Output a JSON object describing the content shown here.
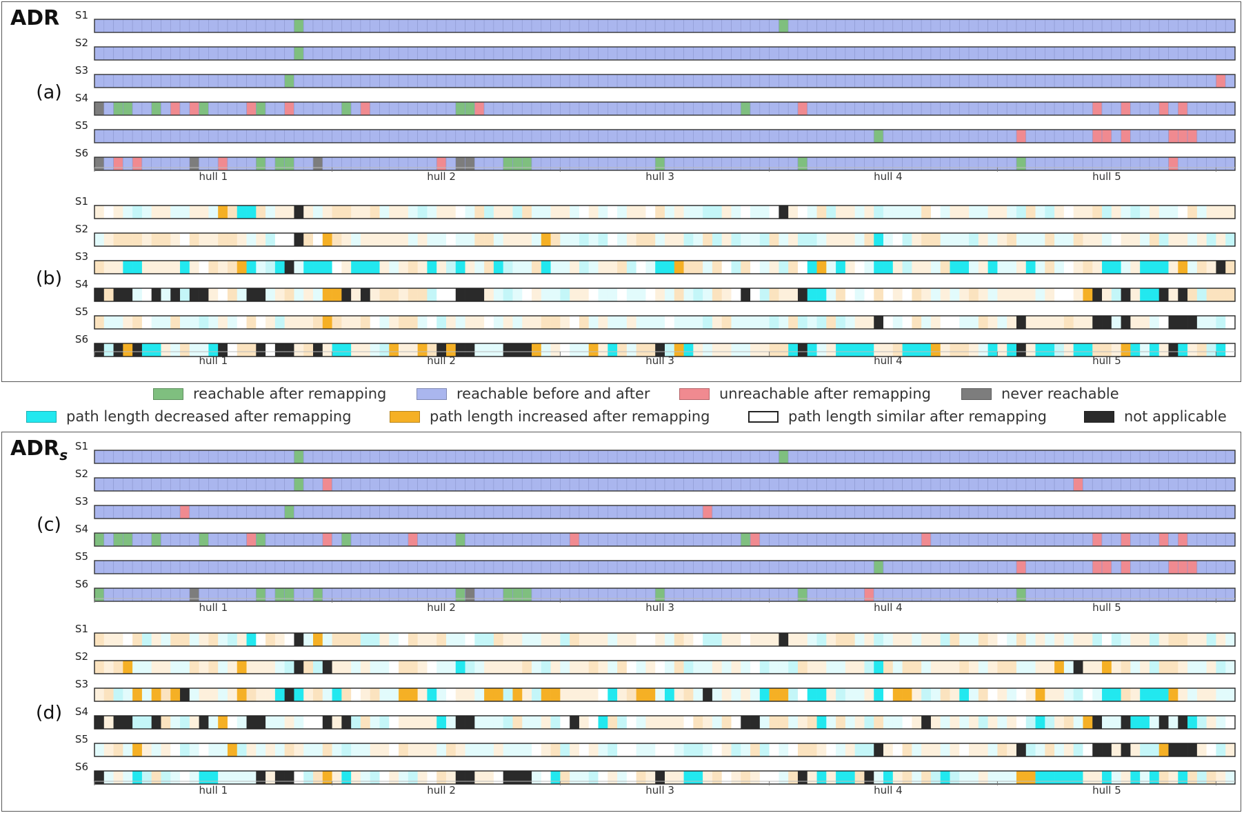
{
  "legend": {
    "items": [
      {
        "key": "reach_after",
        "label": "reachable after remapping",
        "color": "#7fbf7f"
      },
      {
        "key": "reach_both",
        "label": "reachable before and after",
        "color": "#aab6ee"
      },
      {
        "key": "unreach_after",
        "label": "unreachable after remapping",
        "color": "#f08a90"
      },
      {
        "key": "never",
        "label": "never reachable",
        "color": "#7d7d7d"
      },
      {
        "key": "decreased",
        "label": "path length decreased after remapping",
        "color": "#22e8ef"
      },
      {
        "key": "increased",
        "label": "path length increased after remapping",
        "color": "#f5b025"
      },
      {
        "key": "similar",
        "label": "path length similar after remapping",
        "color": "#ffffff"
      },
      {
        "key": "na",
        "label": "not applicable",
        "color": "#2a2a2a"
      }
    ]
  },
  "titles": {
    "top": "ADR",
    "bottom_main": "ADR",
    "bottom_sub": "s"
  },
  "chart_data": {
    "type": "heatmap",
    "n_cells": 120,
    "row_labels": [
      "S1",
      "S2",
      "S3",
      "S4",
      "S5",
      "S6"
    ],
    "hull_labels": [
      "hull 1",
      "hull 2",
      "hull 3",
      "hull 4",
      "hull 5"
    ],
    "hull_boundaries": [
      25,
      49,
      71,
      95,
      118
    ],
    "hull_label_positions": [
      12.5,
      36.5,
      59.5,
      83.5,
      106.5
    ],
    "panels": [
      {
        "label": "(a)",
        "kind": "reach",
        "rows": [
          {
            "green": [
              21,
              72
            ],
            "red": [],
            "gray": []
          },
          {
            "green": [
              21
            ],
            "red": [],
            "gray": []
          },
          {
            "green": [
              20
            ],
            "red": [
              118
            ],
            "gray": []
          },
          {
            "green": [
              2,
              3,
              6,
              11,
              17,
              26,
              38,
              39,
              68
            ],
            "red": [
              8,
              10,
              16,
              20,
              28,
              40,
              74,
              105,
              108,
              112,
              114
            ],
            "gray": [
              0
            ]
          },
          {
            "green": [
              82
            ],
            "red": [
              97,
              105,
              106,
              108,
              113,
              114,
              115
            ],
            "gray": []
          },
          {
            "green": [
              17,
              19,
              20,
              43,
              44,
              45,
              59,
              74,
              97
            ],
            "red": [
              2,
              4,
              13,
              36,
              113
            ],
            "gray": [
              0,
              10,
              23,
              38,
              39
            ]
          }
        ]
      },
      {
        "label": "(b)",
        "kind": "path",
        "rows": [
          {
            "cyan": [
              15,
              16
            ],
            "orange": [
              13
            ],
            "black": [
              21,
              72
            ]
          },
          {
            "cyan": [
              82
            ],
            "orange": [
              24,
              47
            ],
            "black": [
              21
            ]
          },
          {
            "cyan": [
              3,
              4,
              9,
              15,
              16,
              19,
              20,
              22,
              23,
              24,
              27,
              28,
              29,
              35,
              38,
              42,
              47,
              59,
              60,
              75,
              76,
              78,
              82,
              83,
              90,
              91,
              94,
              98,
              106,
              107,
              110,
              111,
              112
            ],
            "orange": [
              15,
              61,
              76,
              114
            ],
            "black": [
              20,
              118
            ]
          },
          {
            "cyan": [
              75,
              76,
              110,
              111
            ],
            "orange": [
              24,
              25,
              104,
              108
            ],
            "black": [
              0,
              2,
              3,
              6,
              8,
              10,
              11,
              16,
              17,
              26,
              28,
              38,
              39,
              40,
              68,
              74,
              105,
              108,
              112,
              114
            ]
          },
          {
            "cyan": [],
            "orange": [
              24
            ],
            "black": [
              82,
              97,
              105,
              106,
              108,
              113,
              114,
              115
            ]
          },
          {
            "cyan": [
              5,
              6,
              12,
              13,
              25,
              26,
              45,
              54,
              61,
              62,
              73,
              74,
              75,
              78,
              79,
              80,
              81,
              85,
              86,
              87,
              94,
              96,
              99,
              100,
              103,
              104,
              108,
              109,
              111,
              114,
              118
            ],
            "orange": [
              3,
              31,
              34,
              37,
              38,
              46,
              52,
              61,
              88,
              108
            ],
            "black": [
              0,
              2,
              4,
              13,
              17,
              19,
              20,
              23,
              36,
              38,
              39,
              43,
              44,
              45,
              59,
              74,
              97,
              113
            ]
          }
        ]
      },
      {
        "label": "(c)",
        "kind": "reach",
        "rows": [
          {
            "green": [
              21,
              72
            ],
            "red": [],
            "gray": []
          },
          {
            "green": [
              21
            ],
            "red": [
              24,
              103
            ],
            "gray": []
          },
          {
            "green": [
              20
            ],
            "red": [
              9,
              64
            ],
            "gray": []
          },
          {
            "green": [
              0,
              2,
              3,
              6,
              11,
              17,
              26,
              38,
              68
            ],
            "red": [
              16,
              24,
              33,
              50,
              69,
              87,
              105,
              108,
              112,
              114
            ],
            "gray": []
          },
          {
            "green": [
              82
            ],
            "red": [
              97,
              105,
              106,
              108,
              113,
              114,
              115
            ],
            "gray": []
          },
          {
            "green": [
              0,
              17,
              19,
              20,
              23,
              38,
              43,
              44,
              45,
              59,
              74,
              97
            ],
            "red": [
              81
            ],
            "gray": [
              10,
              39
            ]
          }
        ]
      },
      {
        "label": "(d)",
        "kind": "path",
        "rows": [
          {
            "cyan": [
              16
            ],
            "orange": [
              23
            ],
            "black": [
              21,
              72
            ]
          },
          {
            "cyan": [
              38,
              82
            ],
            "orange": [
              3,
              15,
              101,
              106
            ],
            "black": [
              21,
              24,
              103
            ]
          },
          {
            "cyan": [
              19,
              21,
              25,
              35,
              42,
              54,
              60,
              70,
              75,
              76,
              82,
              91,
              99,
              106,
              107,
              110,
              111,
              112
            ],
            "orange": [
              4,
              6,
              8,
              15,
              32,
              33,
              41,
              42,
              44,
              47,
              48,
              57,
              58,
              71,
              72,
              84,
              85,
              99,
              113
            ],
            "black": [
              9,
              20,
              64
            ]
          },
          {
            "cyan": [
              36,
              53,
              76,
              99,
              109,
              110,
              115
            ],
            "orange": [
              13,
              24,
              104,
              108
            ],
            "black": [
              0,
              2,
              3,
              6,
              11,
              16,
              17,
              24,
              26,
              38,
              39,
              50,
              68,
              69,
              87,
              105,
              108,
              112,
              114
            ]
          },
          {
            "cyan": [],
            "orange": [
              4,
              14,
              112
            ],
            "black": [
              82,
              97,
              105,
              106,
              108,
              113,
              114,
              115
            ]
          },
          {
            "cyan": [
              4,
              11,
              12,
              20,
              26,
              48,
              62,
              63,
              76,
              78,
              79,
              83,
              89,
              97,
              98,
              99,
              100,
              101,
              102,
              103,
              106,
              109,
              111,
              114
            ],
            "orange": [
              24,
              97,
              98
            ],
            "black": [
              0,
              17,
              19,
              20,
              38,
              39,
              43,
              44,
              45,
              59,
              74,
              81
            ]
          }
        ]
      }
    ]
  }
}
